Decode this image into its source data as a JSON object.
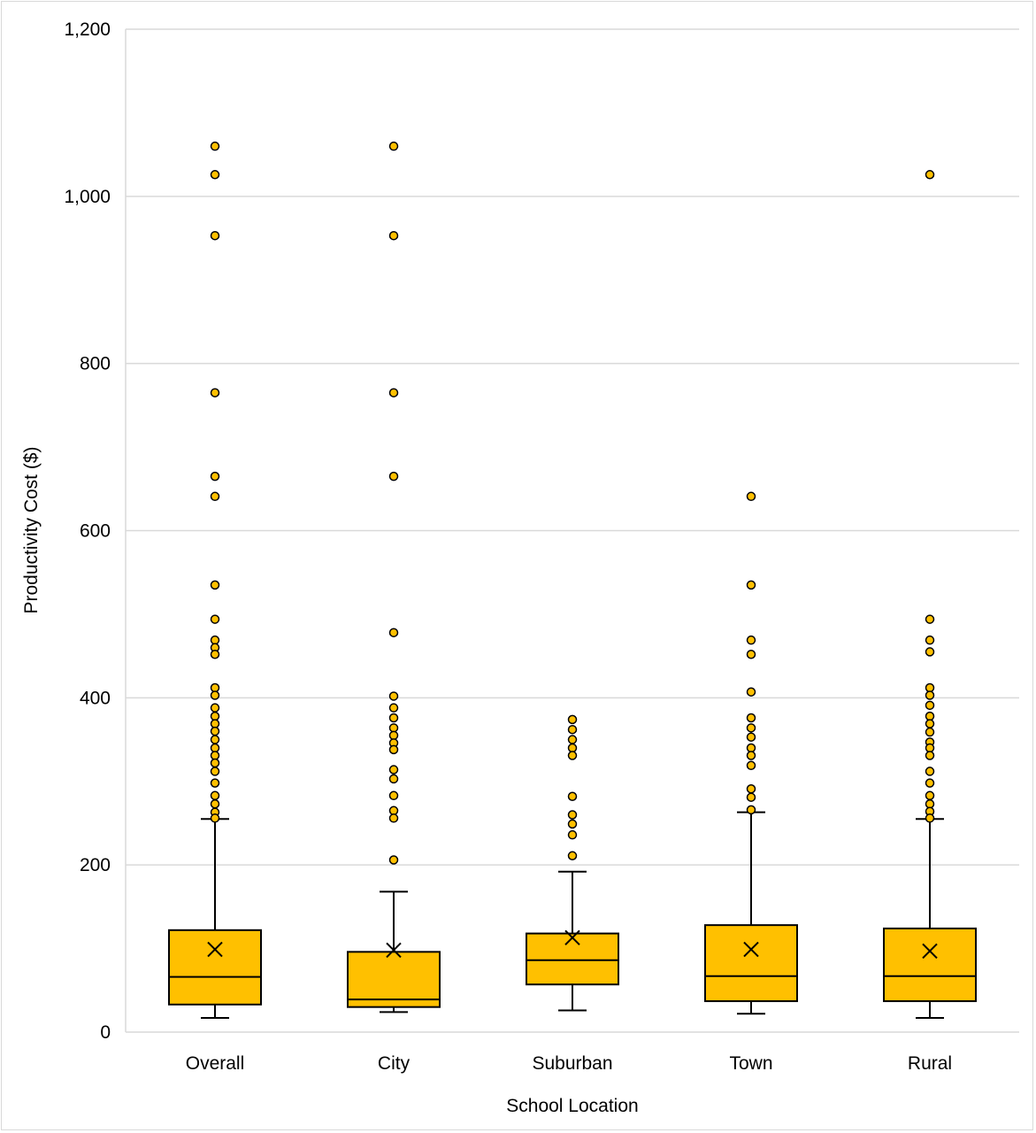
{
  "chart_data": {
    "type": "box",
    "title": "",
    "xlabel": "School Location",
    "ylabel": "Productivity Cost ($)",
    "ylim": [
      0,
      1200
    ],
    "yticks": [
      0,
      200,
      400,
      600,
      800,
      1000,
      1200
    ],
    "ytick_labels": [
      "0",
      "200",
      "400",
      "600",
      "800",
      "1,000",
      "1,200"
    ],
    "grid": true,
    "legend": "none",
    "box_color": "#FFC000",
    "outlier_color": "#FFC000",
    "categories": [
      "Overall",
      "City",
      "Suburban",
      "Town",
      "Rural"
    ],
    "boxes": [
      {
        "name": "Overall",
        "whisker_low": 17,
        "q1": 33,
        "median": 66,
        "q3": 122,
        "whisker_high": 255,
        "mean": 99,
        "outliers": [
          1060,
          1026,
          953,
          765,
          665,
          641,
          535,
          494,
          469,
          460,
          452,
          412,
          403,
          388,
          378,
          369,
          360,
          350,
          340,
          331,
          322,
          312,
          298,
          283,
          273,
          263,
          256
        ]
      },
      {
        "name": "City",
        "whisker_low": 24,
        "q1": 30,
        "median": 39,
        "q3": 96,
        "whisker_high": 168,
        "mean": 98,
        "outliers": [
          1060,
          953,
          765,
          665,
          478,
          402,
          388,
          376,
          364,
          355,
          346,
          338,
          314,
          303,
          283,
          265,
          256,
          206
        ]
      },
      {
        "name": "Suburban",
        "whisker_low": 26,
        "q1": 57,
        "median": 86,
        "q3": 118,
        "whisker_high": 192,
        "mean": 113,
        "outliers": [
          374,
          362,
          350,
          340,
          331,
          282,
          260,
          249,
          236,
          211
        ]
      },
      {
        "name": "Town",
        "whisker_low": 22,
        "q1": 37,
        "median": 67,
        "q3": 128,
        "whisker_high": 263,
        "mean": 99,
        "outliers": [
          641,
          535,
          469,
          452,
          407,
          376,
          364,
          353,
          340,
          331,
          319,
          291,
          281,
          266
        ]
      },
      {
        "name": "Rural",
        "whisker_low": 17,
        "q1": 37,
        "median": 67,
        "q3": 124,
        "whisker_high": 255,
        "mean": 97,
        "outliers": [
          1026,
          494,
          469,
          455,
          412,
          403,
          391,
          378,
          369,
          359,
          347,
          340,
          331,
          312,
          298,
          283,
          273,
          264,
          256
        ]
      }
    ]
  }
}
